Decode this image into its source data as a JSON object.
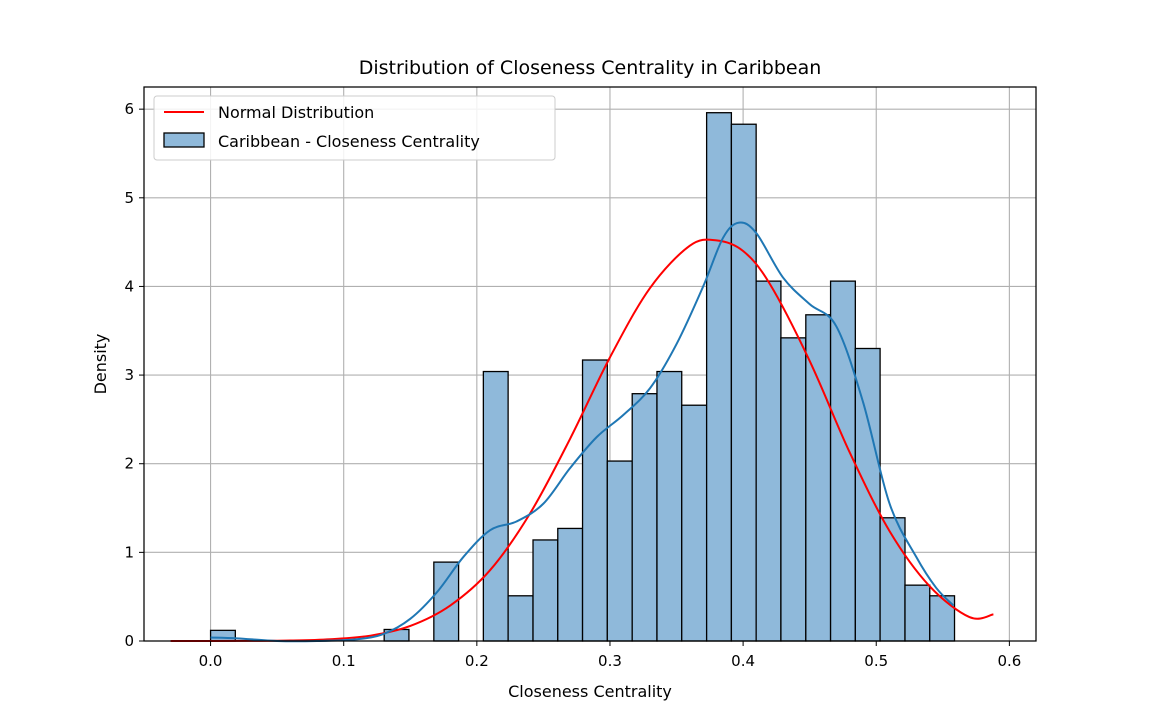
{
  "chart_data": {
    "type": "bar",
    "title": "Distribution of Closeness Centrality in Caribbean",
    "xlabel": "Closeness Centrality",
    "ylabel": "Density",
    "xlim": [
      -0.05,
      0.62
    ],
    "ylim": [
      0,
      6.25
    ],
    "xticks": [
      0.0,
      0.1,
      0.2,
      0.3,
      0.4,
      0.5,
      0.6
    ],
    "xtick_labels": [
      "0.0",
      "0.1",
      "0.2",
      "0.3",
      "0.4",
      "0.5",
      "0.6"
    ],
    "yticks": [
      0,
      1,
      2,
      3,
      4,
      5,
      6
    ],
    "ytick_labels": [
      "0",
      "1",
      "2",
      "3",
      "4",
      "5",
      "6"
    ],
    "grid": true,
    "legend_position": "top-left",
    "legend": [
      "Normal Distribution",
      "Caribbean - Closeness Centrality"
    ],
    "colors": {
      "bar_fill": "#8fb9da",
      "bar_edge": "#000000",
      "kde_line": "#1f77b4",
      "normal_line": "#ff0000",
      "grid": "#b0b0b0"
    },
    "histogram": {
      "bin_edges": [
        0.0,
        0.0186,
        0.0373,
        0.0559,
        0.0745,
        0.0931,
        0.1118,
        0.1304,
        0.149,
        0.1677,
        0.1863,
        0.2049,
        0.2235,
        0.2422,
        0.2608,
        0.2794,
        0.298,
        0.3167,
        0.3353,
        0.3539,
        0.3726,
        0.3912,
        0.4098,
        0.4284,
        0.4471,
        0.4657,
        0.4843,
        0.5029,
        0.5216,
        0.5402,
        0.5588
      ],
      "values": [
        0.12,
        0,
        0,
        0,
        0,
        0,
        0,
        0.13,
        0,
        0.89,
        0,
        3.04,
        0.51,
        1.14,
        1.27,
        3.17,
        2.03,
        2.79,
        3.04,
        2.66,
        5.96,
        5.83,
        4.06,
        3.42,
        3.68,
        4.06,
        3.3,
        1.39,
        0.63,
        0.51
      ]
    },
    "series": [
      {
        "name": "Normal Distribution",
        "type": "line",
        "x": [
          -0.03,
          0.0,
          0.03,
          0.06,
          0.09,
          0.12,
          0.15,
          0.18,
          0.21,
          0.24,
          0.27,
          0.3,
          0.33,
          0.36,
          0.38,
          0.4,
          0.42,
          0.45,
          0.48,
          0.51,
          0.54,
          0.57,
          0.588
        ],
        "y": [
          0.0,
          0.0,
          0.001,
          0.005,
          0.02,
          0.06,
          0.17,
          0.4,
          0.8,
          1.44,
          2.28,
          3.2,
          3.98,
          4.46,
          4.52,
          4.4,
          4.03,
          3.16,
          2.13,
          1.24,
          0.62,
          0.27,
          0.3
        ]
      },
      {
        "name": "",
        "type": "line",
        "x": [
          0.0,
          0.02,
          0.05,
          0.08,
          0.11,
          0.13,
          0.15,
          0.17,
          0.19,
          0.21,
          0.23,
          0.25,
          0.27,
          0.29,
          0.31,
          0.33,
          0.35,
          0.37,
          0.385,
          0.397,
          0.41,
          0.43,
          0.45,
          0.47,
          0.49,
          0.51,
          0.53,
          0.545,
          0.558
        ],
        "y": [
          0.04,
          0.03,
          0.0,
          0.0,
          0.02,
          0.08,
          0.25,
          0.55,
          0.95,
          1.25,
          1.35,
          1.55,
          1.95,
          2.3,
          2.55,
          2.85,
          3.35,
          4.0,
          4.55,
          4.72,
          4.6,
          4.1,
          3.8,
          3.55,
          2.7,
          1.55,
          0.95,
          0.6,
          0.4
        ]
      }
    ]
  }
}
